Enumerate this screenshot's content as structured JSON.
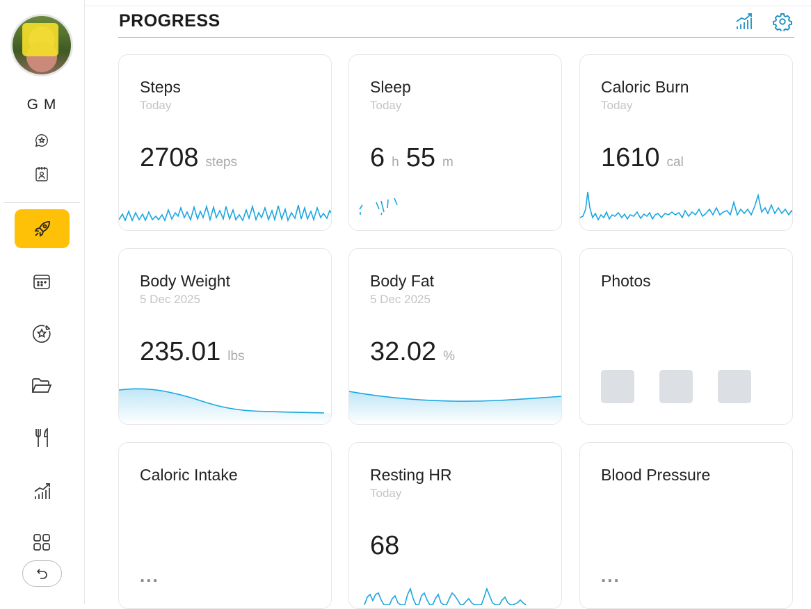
{
  "sidebar": {
    "user_name": "G M",
    "icons": {
      "chat": "chat-star-icon",
      "badge": "id-badge-icon"
    },
    "nav": [
      {
        "name": "progress",
        "icon": "rocket-icon",
        "active": true
      },
      {
        "name": "calendar",
        "icon": "calendar-icon",
        "active": false
      },
      {
        "name": "goals",
        "icon": "target-star-icon",
        "active": false
      },
      {
        "name": "files",
        "icon": "folder-icon",
        "active": false
      },
      {
        "name": "nutrition",
        "icon": "fork-knife-icon",
        "active": false
      },
      {
        "name": "metrics",
        "icon": "bar-chart-icon",
        "active": false
      },
      {
        "name": "apps",
        "icon": "grid-icon",
        "active": false
      }
    ],
    "back_icon": "undo-icon"
  },
  "header": {
    "title": "PROGRESS",
    "icons": [
      "chart-icon",
      "settings-icon"
    ]
  },
  "colors": {
    "accent": "#ffc107",
    "spark": "#1aa6e0",
    "icon_blue": "#1a8fc4"
  },
  "cards": {
    "steps": {
      "title": "Steps",
      "sub": "Today",
      "value": "2708",
      "unit": "steps"
    },
    "sleep": {
      "title": "Sleep",
      "sub": "Today",
      "hours": "6",
      "hours_unit": "h",
      "minutes": "55",
      "minutes_unit": "m"
    },
    "caloric_burn": {
      "title": "Caloric Burn",
      "sub": "Today",
      "value": "1610",
      "unit": "cal"
    },
    "body_weight": {
      "title": "Body Weight",
      "sub": "5 Dec 2025",
      "value": "235.01",
      "unit": "lbs"
    },
    "body_fat": {
      "title": "Body Fat",
      "sub": "5 Dec 2025",
      "value": "32.02",
      "unit": "%"
    },
    "photos": {
      "title": "Photos",
      "count": 3
    },
    "caloric_intake": {
      "title": "Caloric Intake",
      "placeholder": "..."
    },
    "resting_hr": {
      "title": "Resting HR",
      "sub": "Today",
      "value": "68"
    },
    "blood_pressure": {
      "title": "Blood Pressure",
      "placeholder": "..."
    }
  }
}
